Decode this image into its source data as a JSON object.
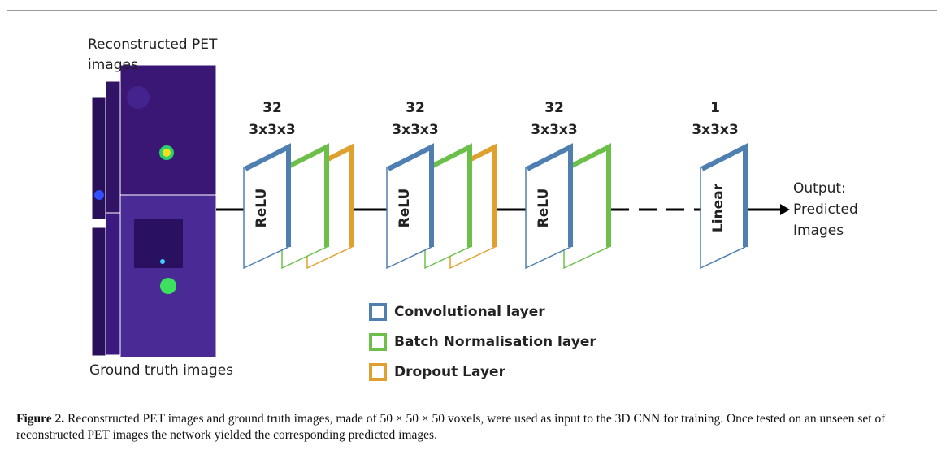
{
  "inputs": {
    "top_label": [
      "Reconstructed PET",
      "images"
    ],
    "bottom_label": "Ground truth images"
  },
  "blocks": [
    {
      "filters": "32",
      "kernel": "3x3x3",
      "activation": "ReLU"
    },
    {
      "filters": "32",
      "kernel": "3x3x3",
      "activation": "ReLU"
    },
    {
      "filters": "32",
      "kernel": "3x3x3",
      "activation": "ReLU"
    },
    {
      "filters": "1",
      "kernel": "3x3x3",
      "activation": "Linear"
    }
  ],
  "output_label": [
    "Output:",
    "Predicted",
    "Images"
  ],
  "legend": [
    {
      "label": "Convolutional layer",
      "color": "#4f7fb0"
    },
    {
      "label": "Batch Normalisation layer",
      "color": "#6cc04a"
    },
    {
      "label": "Dropout Layer",
      "color": "#e0a030"
    }
  ],
  "caption": {
    "label": "Figure 2.",
    "text": "Reconstructed PET images and ground truth images, made of 50 × 50 × 50 voxels, were used as input to the 3D CNN for training. Once tested on an unseen set of reconstructed PET images the network yielded the corresponding predicted images."
  }
}
